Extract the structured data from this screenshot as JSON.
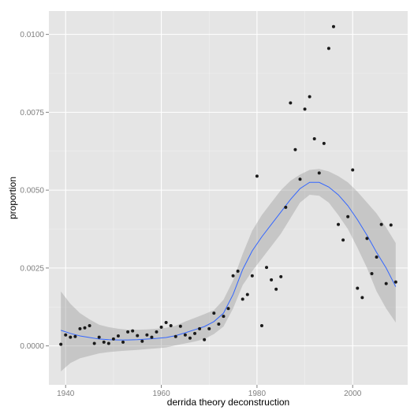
{
  "chart_data": {
    "type": "scatter",
    "xlabel": "derrida theory deconstruction",
    "ylabel": "proportion",
    "xlim": [
      1936.5,
      2011.5
    ],
    "ylim": [
      -0.00125,
      0.01075
    ],
    "x_ticks": [
      {
        "value": 1940,
        "label": "1940"
      },
      {
        "value": 1960,
        "label": "1960"
      },
      {
        "value": 1980,
        "label": "1980"
      },
      {
        "value": 2000,
        "label": "2000"
      }
    ],
    "y_ticks": [
      {
        "value": 0.0,
        "label": "0.0000"
      },
      {
        "value": 0.0025,
        "label": "0.0025"
      },
      {
        "value": 0.005,
        "label": "0.0050"
      },
      {
        "value": 0.0075,
        "label": "0.0075"
      },
      {
        "value": 0.01,
        "label": "0.0100"
      }
    ],
    "grid": true,
    "background": "#e5e5e5",
    "colors": {
      "points": "#1a1a1a",
      "smooth_line": "#3366ff",
      "confidence_band": "#999999"
    },
    "points": {
      "x": [
        1939,
        1940,
        1941,
        1942,
        1943,
        1944,
        1945,
        1946,
        1947,
        1948,
        1949,
        1950,
        1951,
        1952,
        1953,
        1954,
        1955,
        1956,
        1957,
        1958,
        1959,
        1960,
        1961,
        1962,
        1963,
        1964,
        1965,
        1966,
        1967,
        1968,
        1969,
        1970,
        1971,
        1972,
        1973,
        1974,
        1975,
        1976,
        1977,
        1978,
        1979,
        1980,
        1981,
        1982,
        1983,
        1984,
        1985,
        1986,
        1987,
        1988,
        1989,
        1990,
        1991,
        1992,
        1993,
        1994,
        1995,
        1996,
        1997,
        1998,
        1999,
        2000,
        2001,
        2002,
        2003,
        2004,
        2005,
        2006,
        2007,
        2008,
        2009
      ],
      "y": [
        5e-05,
        0.00035,
        0.00028,
        0.0003,
        0.00055,
        0.00058,
        0.00065,
        8e-05,
        0.00028,
        0.00012,
        8e-05,
        0.00022,
        0.00032,
        0.00012,
        0.00045,
        0.00048,
        0.00033,
        0.00015,
        0.00035,
        0.00028,
        0.00045,
        0.0006,
        0.00075,
        0.00065,
        0.0003,
        0.00063,
        0.00035,
        0.00025,
        0.0004,
        0.00055,
        0.0002,
        0.00055,
        0.00105,
        0.0007,
        0.00095,
        0.0012,
        0.00225,
        0.0024,
        0.0015,
        0.00165,
        0.00225,
        0.00545,
        0.00065,
        0.00252,
        0.00212,
        0.00182,
        0.00222,
        0.00445,
        0.0078,
        0.0063,
        0.00535,
        0.0076,
        0.008,
        0.00665,
        0.00555,
        0.0065,
        0.00955,
        0.01025,
        0.0039,
        0.0034,
        0.00415,
        0.00565,
        0.00185,
        0.00155,
        0.00345,
        0.00232,
        0.00285,
        0.0039,
        0.002,
        0.00388,
        0.00205
      ]
    },
    "smooth": {
      "x": [
        1939,
        1941,
        1943,
        1945,
        1947,
        1949,
        1951,
        1953,
        1955,
        1957,
        1959,
        1961,
        1963,
        1965,
        1967,
        1969,
        1971,
        1973,
        1975,
        1977,
        1979,
        1981,
        1983,
        1985,
        1987,
        1989,
        1991,
        1993,
        1995,
        1997,
        1999,
        2001,
        2003,
        2005,
        2007,
        2009
      ],
      "y": [
        0.0005,
        0.0004,
        0.00032,
        0.00027,
        0.00022,
        0.0002,
        0.00019,
        0.00019,
        0.0002,
        0.00022,
        0.00024,
        0.00027,
        0.00033,
        0.00042,
        0.00052,
        0.00062,
        0.00078,
        0.00105,
        0.00165,
        0.00245,
        0.00305,
        0.0035,
        0.0039,
        0.0043,
        0.0047,
        0.00505,
        0.00525,
        0.00525,
        0.0051,
        0.00485,
        0.0045,
        0.00405,
        0.00355,
        0.003,
        0.0025,
        0.0019
      ]
    },
    "band": {
      "x": [
        1939,
        1941,
        1943,
        1945,
        1947,
        1949,
        1951,
        1953,
        1955,
        1957,
        1959,
        1961,
        1963,
        1965,
        1967,
        1969,
        1971,
        1973,
        1975,
        1977,
        1979,
        1981,
        1983,
        1985,
        1987,
        1989,
        1991,
        1993,
        1995,
        1997,
        1999,
        2001,
        2003,
        2005,
        2007,
        2009
      ],
      "upper": [
        0.00175,
        0.00135,
        0.00105,
        0.00085,
        0.00068,
        0.0006,
        0.00055,
        0.00052,
        0.00052,
        0.00053,
        0.00055,
        0.00058,
        0.00065,
        0.00078,
        0.0009,
        0.00102,
        0.00115,
        0.00148,
        0.0021,
        0.00295,
        0.0037,
        0.0042,
        0.0046,
        0.005,
        0.0053,
        0.0055,
        0.00565,
        0.00568,
        0.0056,
        0.00545,
        0.00525,
        0.00495,
        0.0046,
        0.00425,
        0.0038,
        0.0033
      ],
      "lower": [
        -0.00082,
        -0.00055,
        -0.0004,
        -0.00032,
        -0.00024,
        -0.0002,
        -0.00017,
        -0.00015,
        -0.00013,
        -0.0001,
        -8e-05,
        -5e-05,
        2e-05,
        8e-05,
        0.00014,
        0.00022,
        0.00038,
        0.00062,
        0.0012,
        0.00195,
        0.0024,
        0.0028,
        0.0032,
        0.0036,
        0.0041,
        0.0046,
        0.00485,
        0.00482,
        0.0046,
        0.0042,
        0.00375,
        0.00315,
        0.0025,
        0.00175,
        0.0012,
        0.00075
      ]
    }
  }
}
